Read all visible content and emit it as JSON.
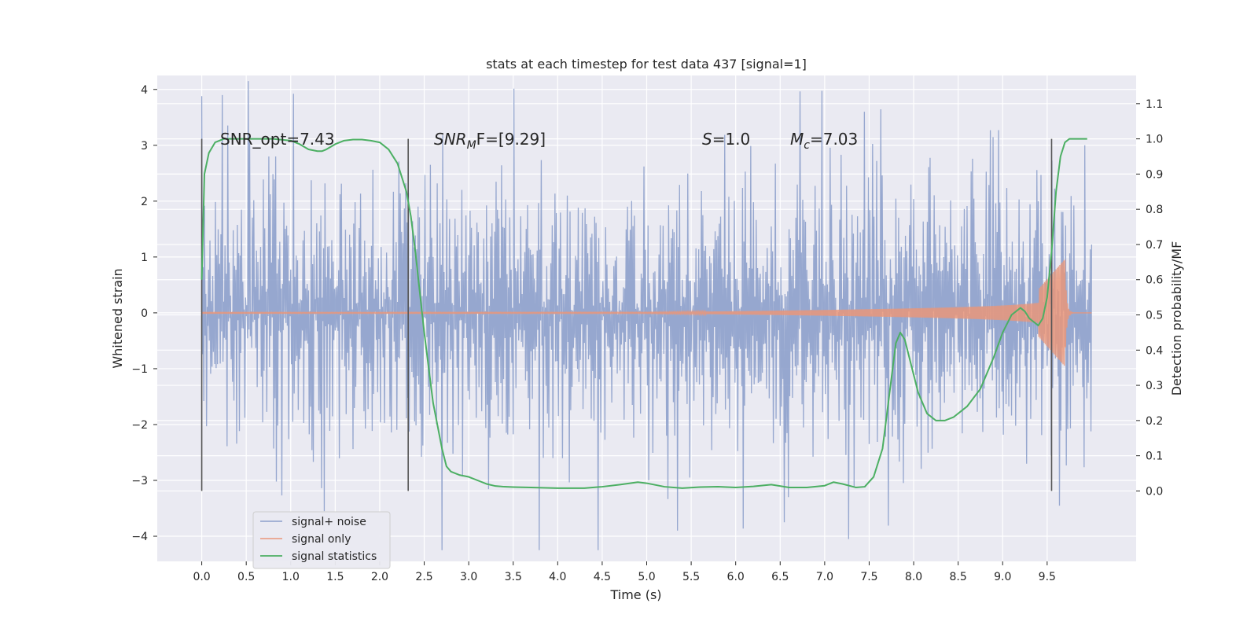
{
  "chart_data": {
    "type": "line",
    "title": "stats at each timestep for test data 437 [signal=1]",
    "xlabel": "Time (s)",
    "ylabel": "Whitened strain",
    "ylabel_right": "Detection probability/MF",
    "xlim": [
      -0.5,
      10.5
    ],
    "ylim": [
      -4.45,
      4.25
    ],
    "ylim_right": [
      -0.2,
      1.18
    ],
    "x_ticks": [
      "0.0",
      "0.5",
      "1.0",
      "1.5",
      "2.0",
      "2.5",
      "3.0",
      "3.5",
      "4.0",
      "4.5",
      "5.0",
      "5.5",
      "6.0",
      "6.5",
      "7.0",
      "7.5",
      "8.0",
      "8.5",
      "9.0",
      "9.5"
    ],
    "y_ticks": [
      "−4",
      "−3",
      "−2",
      "−1",
      "0",
      "1",
      "2",
      "3",
      "4"
    ],
    "y_ticks_right": [
      "0.0",
      "0.1",
      "0.2",
      "0.3",
      "0.4",
      "0.5",
      "0.6",
      "0.7",
      "0.8",
      "0.9",
      "1.0",
      "1.1"
    ],
    "grid": true,
    "legend": {
      "placement": "lower-left",
      "entries": [
        "signal+ noise",
        "signal only",
        "signal statistics"
      ]
    },
    "series": [
      {
        "name": "signal+ noise",
        "color": "#8da0cb",
        "description_axis": "left",
        "x_range": [
          0.0,
          10.0
        ],
        "typical_abs_amplitude": 1.2,
        "peak_values": [
          {
            "x": 0.23,
            "y": 3.9
          },
          {
            "x": 1.38,
            "y": -3.55
          },
          {
            "x": 5.35,
            "y": -3.9
          },
          {
            "x": 6.55,
            "y": -3.75
          },
          {
            "x": 7.27,
            "y": -4.05
          },
          {
            "x": 7.45,
            "y": 3.6
          }
        ]
      },
      {
        "name": "signal only",
        "color": "#e9967a",
        "axis": "left",
        "x_range": [
          0.0,
          10.0
        ],
        "chirp_peak_time": 9.7,
        "peak_amplitude": 0.95
      },
      {
        "name": "signal statistics",
        "color": "#4caf63",
        "axis": "right",
        "x": [
          0.0,
          0.03,
          0.08,
          0.15,
          0.25,
          0.4,
          0.6,
          0.8,
          1.0,
          1.1,
          1.2,
          1.3,
          1.35,
          1.4,
          1.5,
          1.6,
          1.7,
          1.8,
          1.9,
          2.0,
          2.1,
          2.2,
          2.3,
          2.35,
          2.4,
          2.5,
          2.6,
          2.7,
          2.75,
          2.8,
          2.9,
          3.0,
          3.1,
          3.2,
          3.3,
          3.4,
          3.5,
          3.7,
          4.0,
          4.3,
          4.5,
          4.7,
          4.9,
          5.0,
          5.2,
          5.4,
          5.6,
          5.8,
          6.0,
          6.2,
          6.4,
          6.6,
          6.8,
          7.0,
          7.1,
          7.2,
          7.35,
          7.45,
          7.55,
          7.65,
          7.75,
          7.8,
          7.85,
          7.9,
          7.95,
          8.05,
          8.15,
          8.25,
          8.35,
          8.45,
          8.6,
          8.75,
          8.9,
          9.0,
          9.1,
          9.2,
          9.25,
          9.3,
          9.35,
          9.4,
          9.45,
          9.5,
          9.55,
          9.6,
          9.65,
          9.7,
          9.75,
          9.8,
          9.9,
          9.95
        ],
        "values": [
          0.6,
          0.9,
          0.96,
          0.99,
          1.0,
          1.0,
          1.0,
          1.0,
          0.995,
          0.985,
          0.97,
          0.965,
          0.965,
          0.97,
          0.985,
          0.995,
          0.998,
          0.998,
          0.995,
          0.99,
          0.97,
          0.93,
          0.85,
          0.78,
          0.68,
          0.45,
          0.25,
          0.12,
          0.07,
          0.055,
          0.045,
          0.04,
          0.03,
          0.02,
          0.014,
          0.012,
          0.011,
          0.01,
          0.008,
          0.008,
          0.012,
          0.018,
          0.025,
          0.022,
          0.012,
          0.008,
          0.011,
          0.012,
          0.01,
          0.013,
          0.018,
          0.01,
          0.01,
          0.015,
          0.025,
          0.02,
          0.01,
          0.012,
          0.04,
          0.12,
          0.32,
          0.42,
          0.45,
          0.43,
          0.38,
          0.28,
          0.22,
          0.2,
          0.2,
          0.21,
          0.24,
          0.29,
          0.38,
          0.45,
          0.5,
          0.52,
          0.51,
          0.49,
          0.48,
          0.47,
          0.49,
          0.55,
          0.68,
          0.85,
          0.95,
          0.99,
          1.0,
          1.0,
          1.0,
          1.0
        ]
      }
    ],
    "vlines": [
      0.0,
      2.32,
      9.55
    ],
    "annotations": {
      "snr_opt": "SNR_opt=7.43",
      "snr_mf_main": "SNR",
      "snr_mf_sub": "M",
      "snr_mf_rest": "F=[9.29]",
      "s_main": "S",
      "s_rest": "=1.0",
      "mc_main": "M",
      "mc_sub": "c",
      "mc_rest": "=7.03"
    }
  }
}
